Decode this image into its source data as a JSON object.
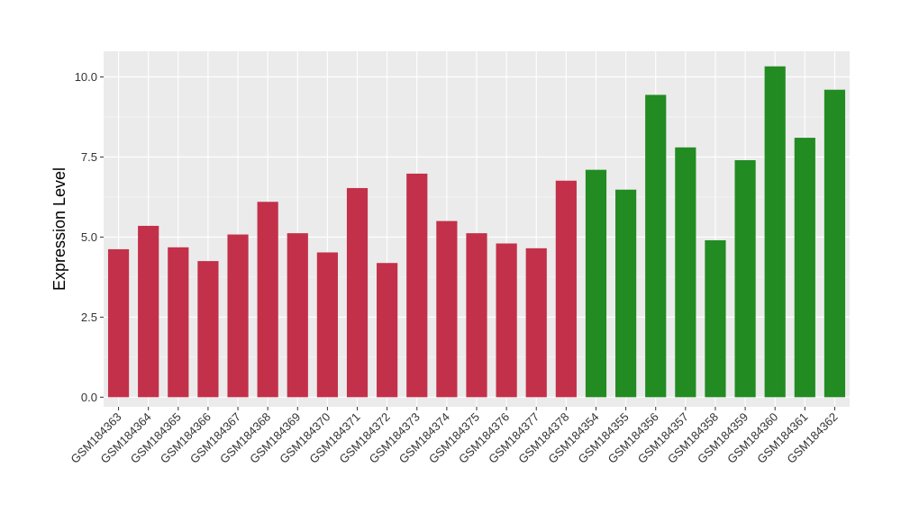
{
  "chart_data": {
    "type": "bar",
    "title": "",
    "xlabel": "",
    "ylabel": "Expression Level",
    "ylim": [
      -0.3,
      10.8
    ],
    "yticks": [
      0.0,
      2.5,
      5.0,
      7.5,
      10.0
    ],
    "ytick_labels": [
      "0.0",
      "2.5",
      "5.0",
      "7.5",
      "10.0"
    ],
    "grid": true,
    "background": "#EBEBEB",
    "categories": [
      "GSM184363",
      "GSM184364",
      "GSM184365",
      "GSM184366",
      "GSM184367",
      "GSM184368",
      "GSM184369",
      "GSM184370",
      "GSM184371",
      "GSM184372",
      "GSM184373",
      "GSM184374",
      "GSM184375",
      "GSM184376",
      "GSM184377",
      "GSM184378",
      "GSM184354",
      "GSM184355",
      "GSM184356",
      "GSM184357",
      "GSM184358",
      "GSM184359",
      "GSM184360",
      "GSM184361",
      "GSM184362"
    ],
    "values": [
      4.62,
      5.35,
      4.68,
      4.25,
      5.08,
      6.1,
      5.12,
      4.52,
      6.53,
      4.19,
      6.98,
      5.5,
      5.12,
      4.8,
      4.65,
      6.76,
      7.1,
      6.48,
      9.44,
      7.8,
      4.9,
      7.4,
      10.33,
      8.1,
      9.6
    ],
    "bar_colors": [
      "#C3304A",
      "#C3304A",
      "#C3304A",
      "#C3304A",
      "#C3304A",
      "#C3304A",
      "#C3304A",
      "#C3304A",
      "#C3304A",
      "#C3304A",
      "#C3304A",
      "#C3304A",
      "#C3304A",
      "#C3304A",
      "#C3304A",
      "#C3304A",
      "#228B22",
      "#228B22",
      "#228B22",
      "#228B22",
      "#228B22",
      "#228B22",
      "#228B22",
      "#228B22",
      "#228B22"
    ]
  }
}
